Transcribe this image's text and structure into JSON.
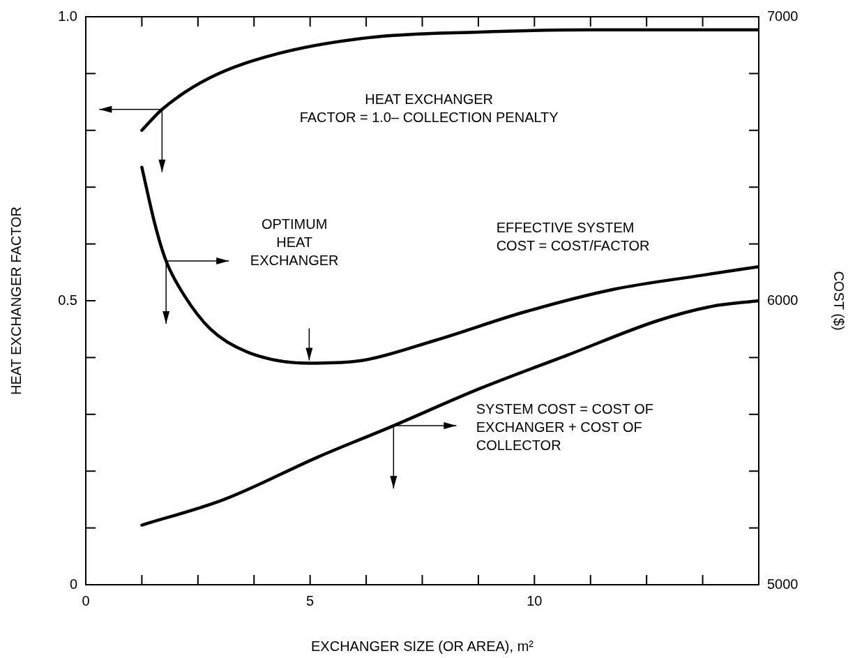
{
  "chart_data": {
    "type": "line",
    "xlabel": "EXCHANGER SIZE (OR AREA), m²",
    "ylabel": "HEAT EXCHANGER FACTOR",
    "y2label": "COST ($)",
    "xlim": [
      0,
      15
    ],
    "xticks": [
      0,
      {
        "value": 1.25,
        "label": null
      },
      {
        "value": 2.5,
        "label": null
      },
      {
        "value": 3.75,
        "label": null
      },
      5,
      {
        "value": 6.25,
        "label": null
      },
      {
        "value": 7.5,
        "label": null
      },
      {
        "value": 8.75,
        "label": null
      },
      10,
      {
        "value": 11.25,
        "label": null
      },
      {
        "value": 12.5,
        "label": null
      },
      {
        "value": 13.75,
        "label": null
      },
      {
        "value": 15,
        "label": null
      }
    ],
    "ylim": [
      0,
      1
    ],
    "yticks": [
      0,
      {
        "value": 0.1,
        "label": null
      },
      {
        "value": 0.2,
        "label": null
      },
      {
        "value": 0.3,
        "label": null
      },
      {
        "value": 0.4,
        "label": null
      },
      0.5,
      {
        "value": 0.6,
        "label": null
      },
      {
        "value": 0.7,
        "label": null
      },
      {
        "value": 0.8,
        "label": null
      },
      {
        "value": 0.9,
        "label": null
      },
      {
        "value": 1,
        "label": "1.0"
      }
    ],
    "y2lim": [
      5000,
      7000
    ],
    "y2ticks": [
      5000,
      {
        "value": 5200,
        "label": null
      },
      {
        "value": 5400,
        "label": null
      },
      {
        "value": 5600,
        "label": null
      },
      {
        "value": 5800,
        "label": null
      },
      6000,
      {
        "value": 6200,
        "label": null
      },
      {
        "value": 6400,
        "label": null
      },
      {
        "value": 6600,
        "label": null
      },
      {
        "value": 6800,
        "label": null
      },
      7000
    ],
    "marker": "none",
    "line_style": "solid",
    "legend": false,
    "grid": false,
    "series": [
      {
        "color": "#000000",
        "x": [
          1.25,
          1.7,
          2.78,
          4.28,
          6.28,
          8.77,
          11.26,
          15
        ],
        "values": [
          0.8,
          0.837,
          0.893,
          0.935,
          0.963,
          0.973,
          0.977,
          0.977
        ]
      },
      {
        "color": "#000000",
        "axis": "y2",
        "x": [
          1.25,
          1.54,
          1.79,
          2.19,
          2.78,
          3.59,
          4.98,
          6.17,
          7.78,
          9.77,
          11.76,
          13.75,
          15
        ],
        "values": [
          6470,
          6270,
          6140,
          6020,
          5900,
          5820,
          5780,
          5790,
          5860,
          5960,
          6040,
          6090,
          6120
        ]
      },
      {
        "color": "#000000",
        "axis": "y2",
        "x": [
          1.25,
          3.08,
          5.18,
          6.86,
          8.77,
          10.76,
          12.75,
          13.95,
          15
        ],
        "values": [
          5210,
          5300,
          5450,
          5560,
          5690,
          5810,
          5930,
          5980,
          6000
        ]
      }
    ],
    "annotations": [
      "HEAT EXCHANGER\nFACTOR = 1.0– COLLECTION PENALTY",
      "OPTIMUM\nHEAT\nEXCHANGER",
      "EFFECTIVE SYSTEM\nCOST = COST/FACTOR",
      "SYSTEM COST = COST OF\nEXCHANGER + COST OF\nCOLLECTOR"
    ]
  }
}
